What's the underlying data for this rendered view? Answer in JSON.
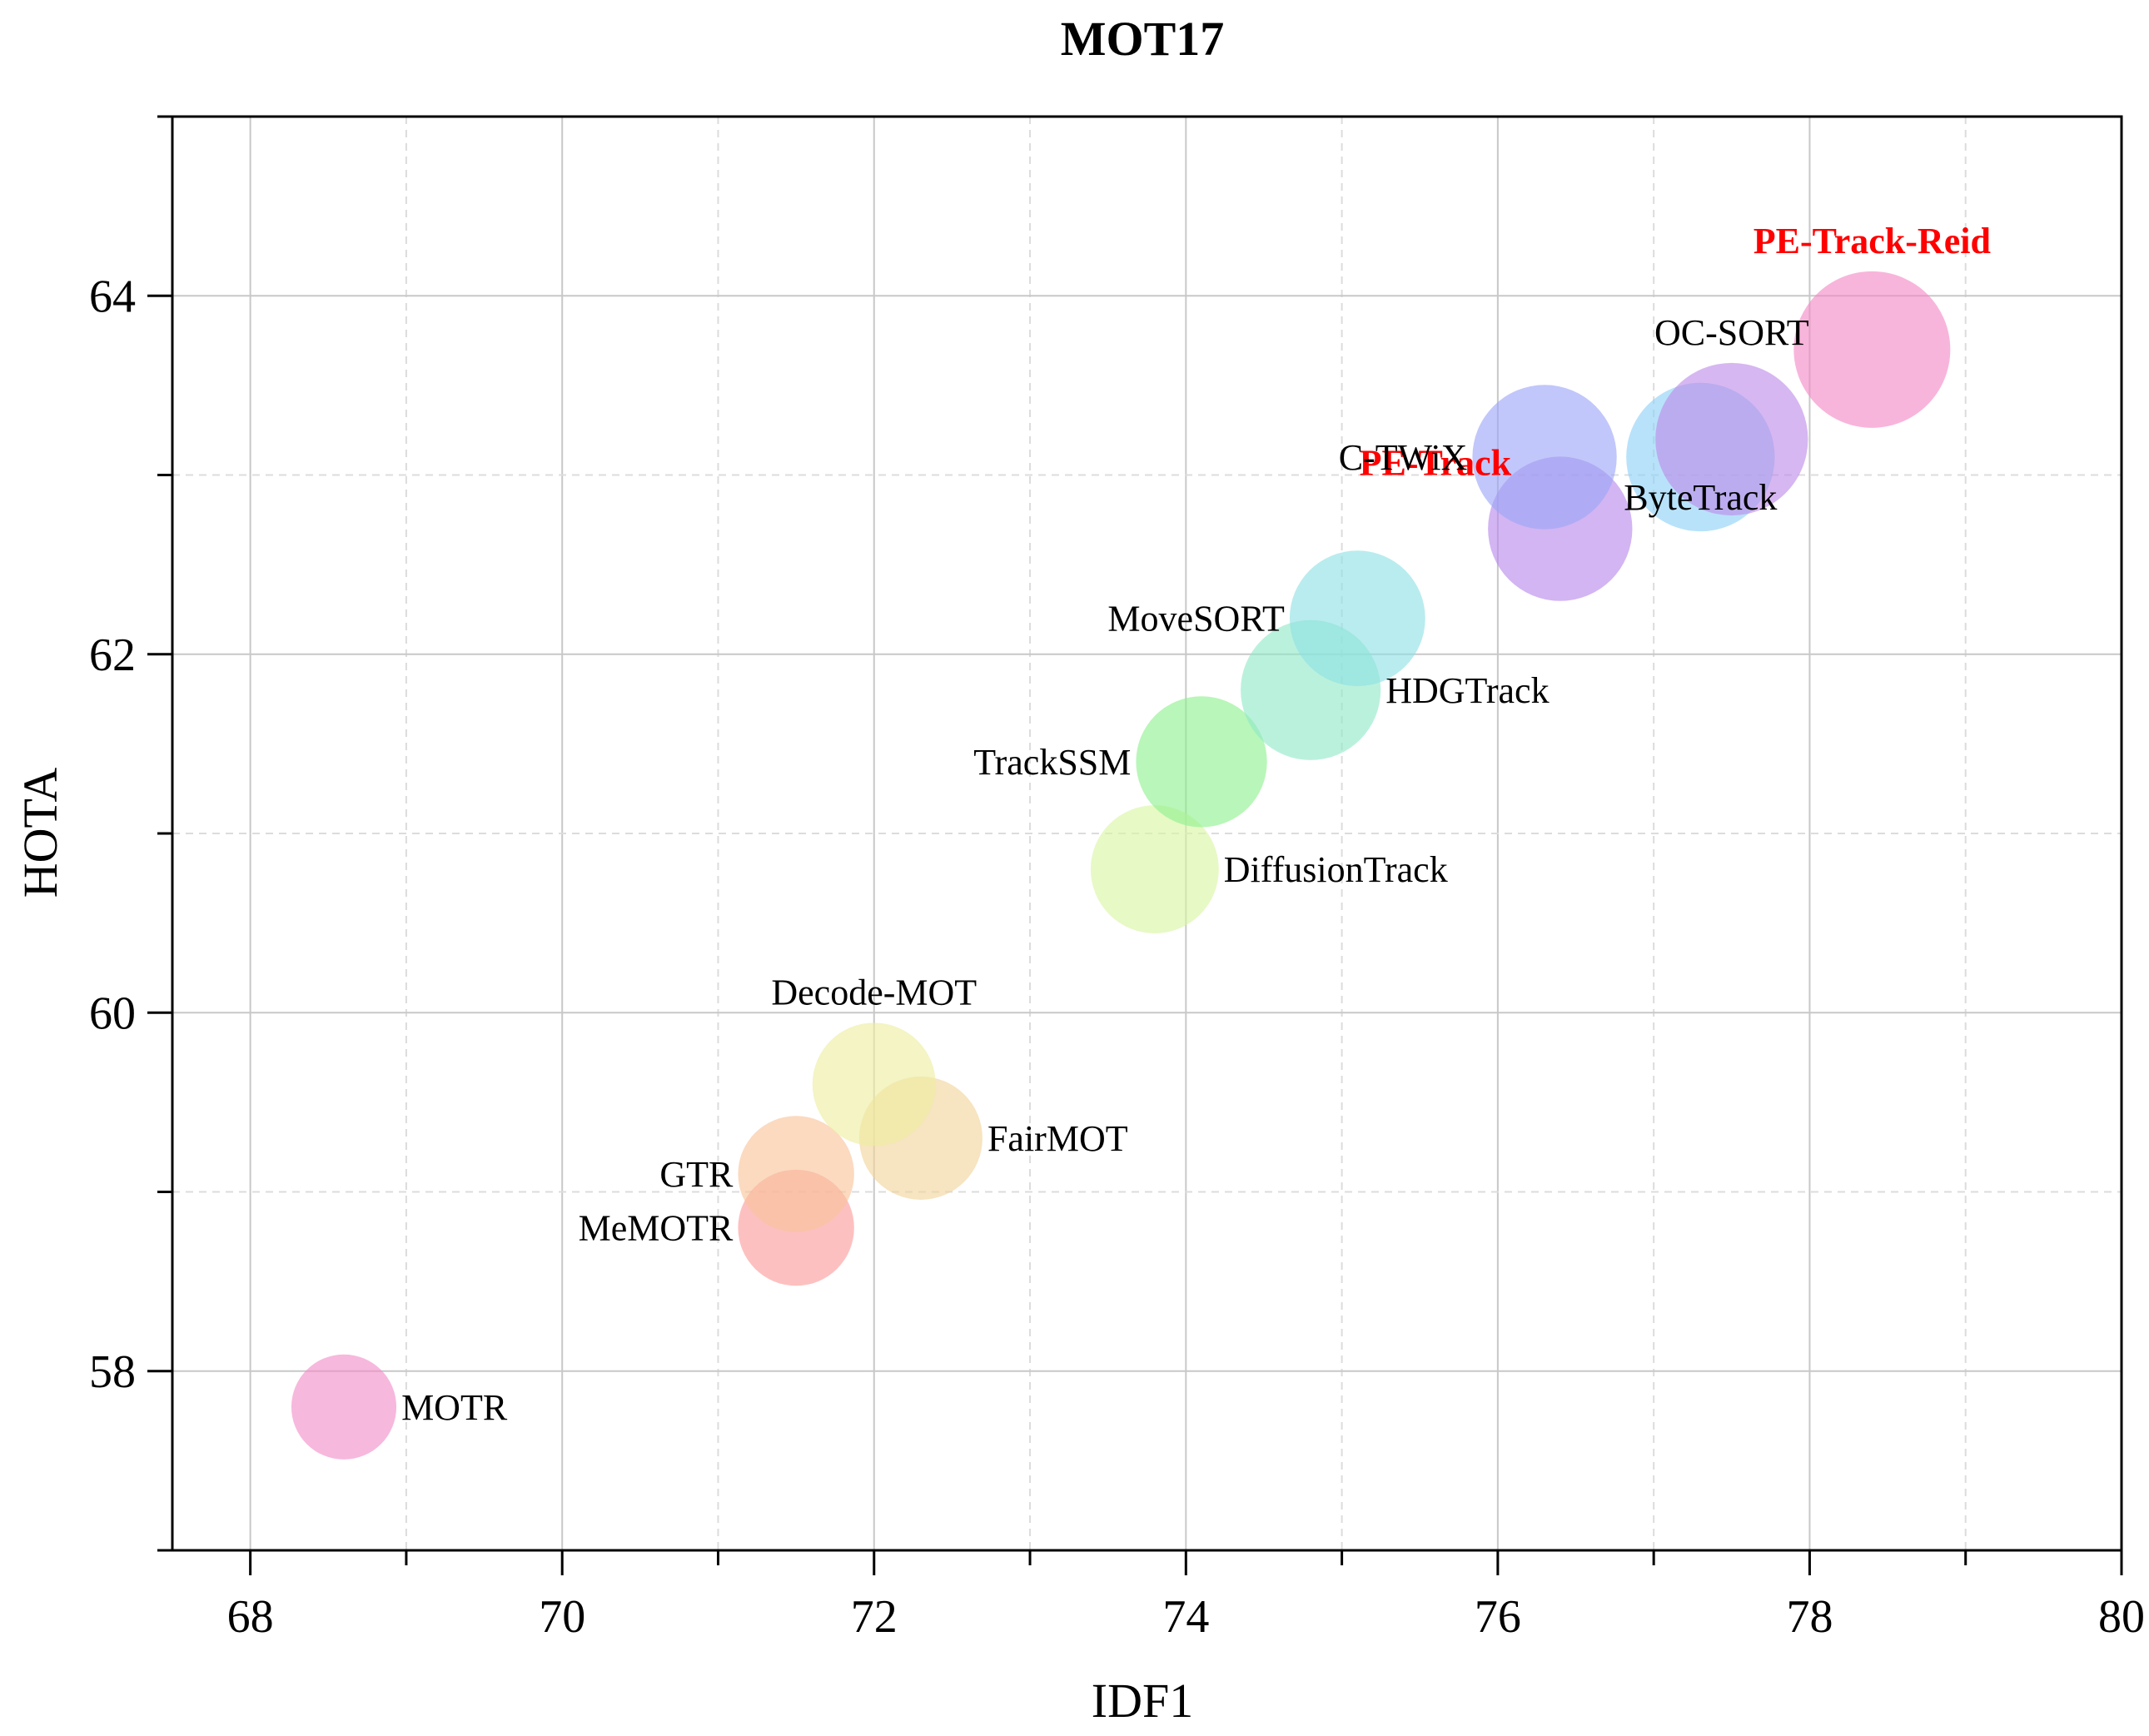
{
  "chart_data": {
    "type": "scatter",
    "title": "MOT17",
    "xlabel": "IDF1",
    "ylabel": "HOTA",
    "xlim": [
      67.5,
      80
    ],
    "ylim": [
      57,
      65
    ],
    "x_ticks": [
      68,
      70,
      72,
      74,
      76,
      78,
      80
    ],
    "y_ticks": [
      58,
      60,
      62,
      64
    ],
    "grid": true,
    "points": [
      {
        "name": "MOTR",
        "x": 68.6,
        "y": 57.8,
        "color": "#f28cc8",
        "size": 0.45,
        "label_pos": "right",
        "highlight": false
      },
      {
        "name": "MeMOTR",
        "x": 71.5,
        "y": 58.8,
        "color": "#fb9a99",
        "size": 0.55,
        "label_pos": "left",
        "highlight": false
      },
      {
        "name": "GTR",
        "x": 71.5,
        "y": 59.1,
        "color": "#f9c49a",
        "size": 0.55,
        "label_pos": "left",
        "highlight": false
      },
      {
        "name": "FairMOT",
        "x": 72.3,
        "y": 59.3,
        "color": "#f2d49a",
        "size": 0.62,
        "label_pos": "right",
        "highlight": false
      },
      {
        "name": "Decode-MOT",
        "x": 72.0,
        "y": 59.6,
        "color": "#eeee9f",
        "size": 0.62,
        "label_pos": "top",
        "highlight": false
      },
      {
        "name": "DiffusionTrack",
        "x": 73.8,
        "y": 60.8,
        "color": "#d8f5a2",
        "size": 0.67,
        "label_pos": "right",
        "highlight": false
      },
      {
        "name": "TrackSSM",
        "x": 74.1,
        "y": 61.4,
        "color": "#8ef08e",
        "size": 0.7,
        "label_pos": "left",
        "highlight": false
      },
      {
        "name": "HDGTrack",
        "x": 74.8,
        "y": 61.8,
        "color": "#8fe8c8",
        "size": 0.8,
        "label_pos": "right",
        "highlight": false
      },
      {
        "name": "MoveSORT",
        "x": 75.1,
        "y": 62.2,
        "color": "#8ee0e3",
        "size": 0.75,
        "label_pos": "left",
        "highlight": false
      },
      {
        "name": "PE-Track",
        "x": 76.4,
        "y": 62.7,
        "color": "#b687ea",
        "size": 0.85,
        "label_pos": "upper-left",
        "highlight": true
      },
      {
        "name": "C-TWiX",
        "x": 76.3,
        "y": 63.1,
        "color": "#9ba5f7",
        "size": 0.85,
        "label_pos": "left",
        "highlight": false
      },
      {
        "name": "ByteTrack",
        "x": 77.3,
        "y": 63.1,
        "color": "#8cd0f7",
        "size": 0.9,
        "label_pos": "lower-right",
        "highlight": false
      },
      {
        "name": "OC-SORT",
        "x": 77.5,
        "y": 63.2,
        "color": "#bd8ae9",
        "size": 0.95,
        "label_pos": "top",
        "highlight": false
      },
      {
        "name": "PE-Track-Reid",
        "x": 78.4,
        "y": 63.7,
        "color": "#f487c5",
        "size": 1.0,
        "label_pos": "top",
        "highlight": true
      }
    ]
  }
}
